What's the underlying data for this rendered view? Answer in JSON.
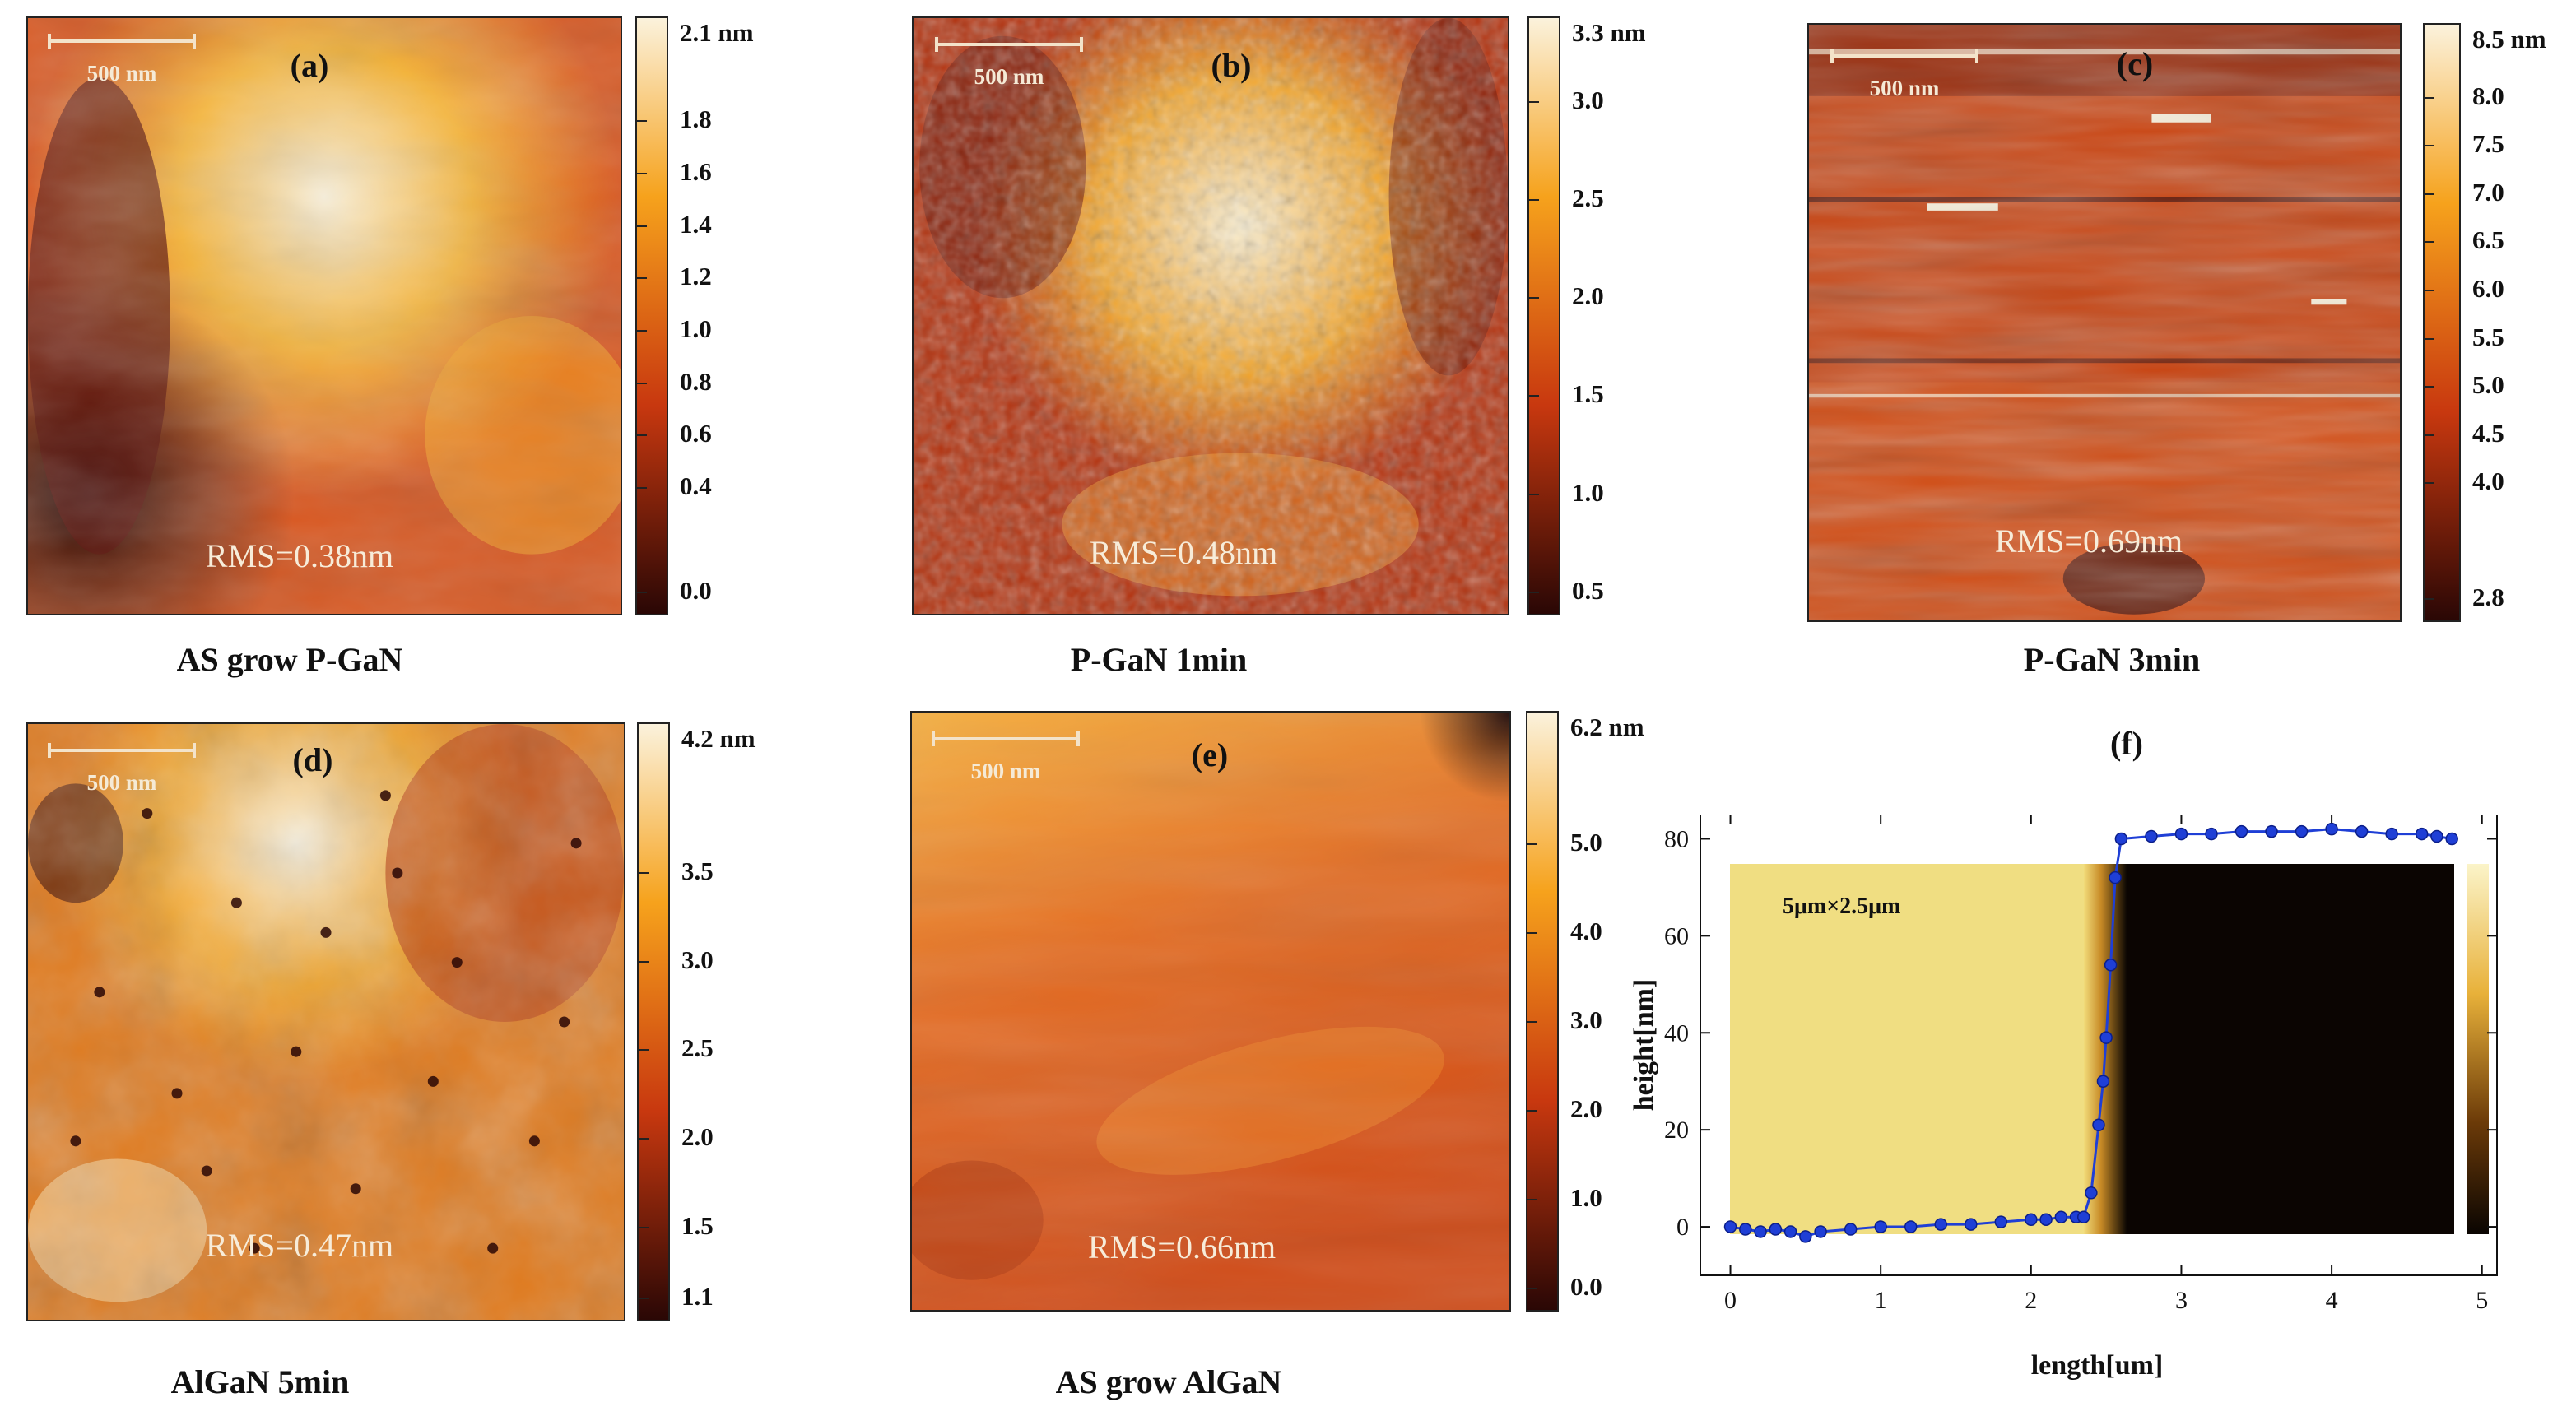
{
  "panels": [
    {
      "label": "(a)",
      "scale": "500 nm",
      "rms": "RMS=0.38nm",
      "caption": "AS grow P-GaN",
      "unit_max": "2.1 nm",
      "ticks": [
        "1.8",
        "1.6",
        "1.4",
        "1.2",
        "1.0",
        "0.8",
        "0.6",
        "0.4",
        "0.0"
      ]
    },
    {
      "label": "(b)",
      "scale": "500 nm",
      "rms": "RMS=0.48nm",
      "caption": "P-GaN 1min",
      "unit_max": "3.3 nm",
      "ticks": [
        "3.0",
        "2.5",
        "2.0",
        "1.5",
        "1.0",
        "0.5"
      ]
    },
    {
      "label": "(c)",
      "scale": "500 nm",
      "rms": "RMS=0.69nm",
      "caption": "P-GaN 3min",
      "unit_max": "8.5 nm",
      "ticks": [
        "8.0",
        "7.5",
        "7.0",
        "6.5",
        "6.0",
        "5.5",
        "5.0",
        "4.5",
        "4.0",
        "2.8"
      ]
    },
    {
      "label": "(d)",
      "scale": "500 nm",
      "rms": "RMS=0.47nm",
      "caption": "AlGaN 5min",
      "unit_max": "4.2 nm",
      "ticks": [
        "3.5",
        "3.0",
        "2.5",
        "2.0",
        "1.5",
        "1.1"
      ]
    },
    {
      "label": "(e)",
      "scale": "500 nm",
      "rms": "RMS=0.66nm",
      "caption": "AS grow AlGaN",
      "unit_max": "6.2 nm",
      "ticks": [
        "5.0",
        "4.0",
        "3.0",
        "2.0",
        "1.0",
        "0.0"
      ]
    }
  ],
  "panel_f": {
    "label": "(f)",
    "inset_label": "5μm×2.5μm",
    "xlabel": "length[um]",
    "ylabel": "height[nm]",
    "x_ticks": [
      "0",
      "1",
      "2",
      "3",
      "4",
      "5"
    ],
    "y_ticks": [
      "80",
      "60",
      "40",
      "20",
      "0"
    ]
  },
  "colors": {
    "afm_dark": "#2a0705",
    "afm_mid": "#c8380f",
    "afm_bright": "#f6a21c",
    "afm_white": "#fbf2dc",
    "profile": "#1f3fd6"
  },
  "chart_data": {
    "type": "line",
    "title": "",
    "xlabel": "length[um]",
    "ylabel": "height[nm]",
    "xlim": [
      -0.2,
      5.1
    ],
    "ylim": [
      -10,
      85
    ],
    "x_ticks": [
      0,
      1,
      2,
      3,
      4,
      5
    ],
    "y_ticks": [
      0,
      20,
      40,
      60,
      80
    ],
    "series": [
      {
        "x": [
          0.0,
          0.1,
          0.2,
          0.3,
          0.4,
          0.5,
          0.6,
          0.8,
          1.0,
          1.2,
          1.4,
          1.6,
          1.8,
          2.0,
          2.1,
          2.2,
          2.3,
          2.35,
          2.4,
          2.45,
          2.48,
          2.5,
          2.53,
          2.56,
          2.6,
          2.8,
          3.0,
          3.2,
          3.4,
          3.6,
          3.8,
          4.0,
          4.2,
          4.4,
          4.6,
          4.7,
          4.8
        ],
        "y": [
          0,
          -0.5,
          -1,
          -0.5,
          -1,
          -2,
          -1,
          -0.5,
          0,
          0,
          0.5,
          0.5,
          1,
          1.5,
          1.5,
          2,
          2,
          2,
          7,
          21,
          30,
          39,
          54,
          72,
          80,
          80.5,
          81,
          81,
          81.5,
          81.5,
          81.5,
          82,
          81.5,
          81,
          81,
          80.5,
          80
        ]
      }
    ]
  }
}
